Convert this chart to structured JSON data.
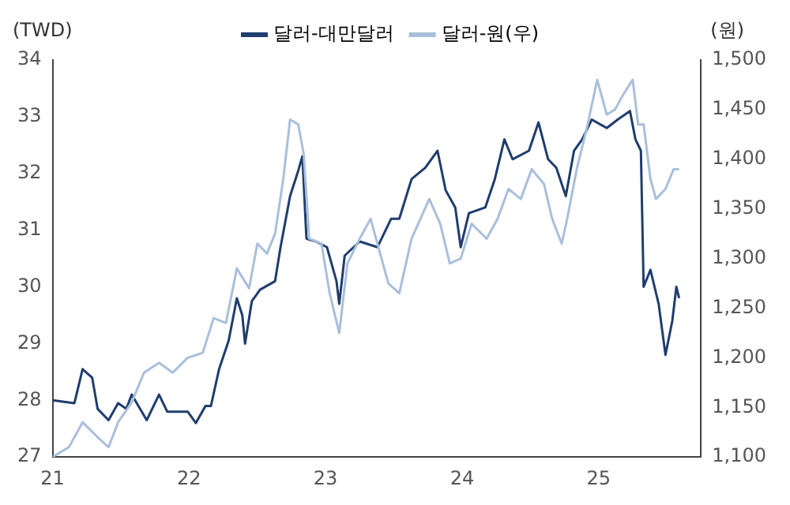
{
  "chart_data": {
    "type": "line",
    "ylabel": "(TWD)",
    "y2label": "(원)",
    "legend": "top",
    "grid": false,
    "marker": "none",
    "line_style": "solid",
    "xlim": [
      21,
      25.75
    ],
    "xticks": [
      21,
      22,
      23,
      24,
      25
    ],
    "ylim": [
      27,
      34
    ],
    "yticks": [
      27,
      28,
      29,
      30,
      31,
      32,
      33,
      34
    ],
    "y2lim": [
      1100,
      1500
    ],
    "y2ticks": [
      {
        "value": 1100,
        "label": "1,100"
      },
      {
        "value": 1150,
        "label": "1,150"
      },
      {
        "value": 1200,
        "label": "1,200"
      },
      {
        "value": 1250,
        "label": "1,250"
      },
      {
        "value": 1300,
        "label": "1,300"
      },
      {
        "value": 1350,
        "label": "1,350"
      },
      {
        "value": 1400,
        "label": "1,400"
      },
      {
        "value": 1450,
        "label": "1,450"
      },
      {
        "value": 1500,
        "label": "1,500"
      }
    ],
    "series": [
      {
        "name": "달러-대만달러",
        "color": "#1f3d6e",
        "x": [
          21.0,
          21.16,
          21.22,
          21.29,
          21.33,
          21.41,
          21.48,
          21.54,
          21.58,
          21.69,
          21.78,
          21.84,
          21.99,
          22.05,
          22.12,
          22.16,
          22.22,
          22.29,
          22.35,
          22.39,
          22.41,
          22.46,
          22.52,
          22.63,
          22.67,
          22.74,
          22.8,
          22.83,
          22.86,
          22.93,
          23.01,
          23.08,
          23.1,
          23.14,
          23.25,
          23.38,
          23.48,
          23.54,
          23.63,
          23.73,
          23.82,
          23.88,
          23.95,
          23.99,
          24.05,
          24.17,
          24.24,
          24.31,
          24.37,
          24.49,
          24.56,
          24.63,
          24.69,
          24.76,
          24.82,
          24.88,
          24.95,
          25.06,
          25.14,
          25.23,
          25.27,
          25.31,
          25.33,
          25.38,
          25.44,
          25.49,
          25.54,
          25.57,
          25.59
        ],
        "values": [
          28.0,
          27.95,
          28.55,
          28.4,
          27.85,
          27.65,
          27.95,
          27.85,
          28.1,
          27.65,
          28.1,
          27.8,
          27.8,
          27.6,
          27.9,
          27.9,
          28.55,
          29.05,
          29.8,
          29.5,
          29.0,
          29.75,
          29.95,
          30.1,
          30.7,
          31.6,
          32.05,
          32.3,
          30.85,
          30.8,
          30.7,
          30.1,
          29.7,
          30.55,
          30.8,
          30.7,
          31.2,
          31.2,
          31.9,
          32.1,
          32.4,
          31.7,
          31.4,
          30.7,
          31.3,
          31.4,
          31.9,
          32.6,
          32.25,
          32.4,
          32.9,
          32.25,
          32.1,
          31.6,
          32.4,
          32.6,
          32.95,
          32.8,
          32.95,
          33.1,
          32.6,
          32.4,
          30.0,
          30.3,
          29.7,
          28.8,
          29.4,
          30.0,
          29.8
        ]
      },
      {
        "name": "달러-원(우)",
        "color": "#a9bfdb",
        "axis": "y2",
        "x": [
          21.0,
          21.12,
          21.22,
          21.33,
          21.41,
          21.48,
          21.58,
          21.67,
          21.78,
          21.88,
          21.99,
          22.1,
          22.18,
          22.27,
          22.35,
          22.44,
          22.5,
          22.57,
          22.63,
          22.69,
          22.74,
          22.8,
          22.84,
          22.88,
          22.97,
          23.03,
          23.1,
          23.16,
          23.25,
          23.33,
          23.46,
          23.54,
          23.63,
          23.76,
          23.84,
          23.91,
          23.99,
          24.07,
          24.18,
          24.26,
          24.34,
          24.43,
          24.51,
          24.6,
          24.66,
          24.73,
          24.77,
          24.84,
          24.92,
          24.99,
          25.06,
          25.12,
          25.18,
          25.25,
          25.29,
          25.33,
          25.38,
          25.42,
          25.49,
          25.55,
          25.59
        ],
        "values": [
          1100,
          1110,
          1135,
          1120,
          1110,
          1135,
          1155,
          1185,
          1195,
          1185,
          1200,
          1205,
          1240,
          1235,
          1290,
          1270,
          1315,
          1305,
          1325,
          1380,
          1440,
          1435,
          1405,
          1320,
          1315,
          1265,
          1225,
          1295,
          1320,
          1340,
          1275,
          1265,
          1320,
          1360,
          1335,
          1295,
          1300,
          1335,
          1320,
          1340,
          1370,
          1360,
          1390,
          1375,
          1340,
          1315,
          1340,
          1390,
          1435,
          1480,
          1445,
          1450,
          1465,
          1480,
          1435,
          1435,
          1380,
          1360,
          1370,
          1390,
          1390
        ]
      }
    ]
  }
}
